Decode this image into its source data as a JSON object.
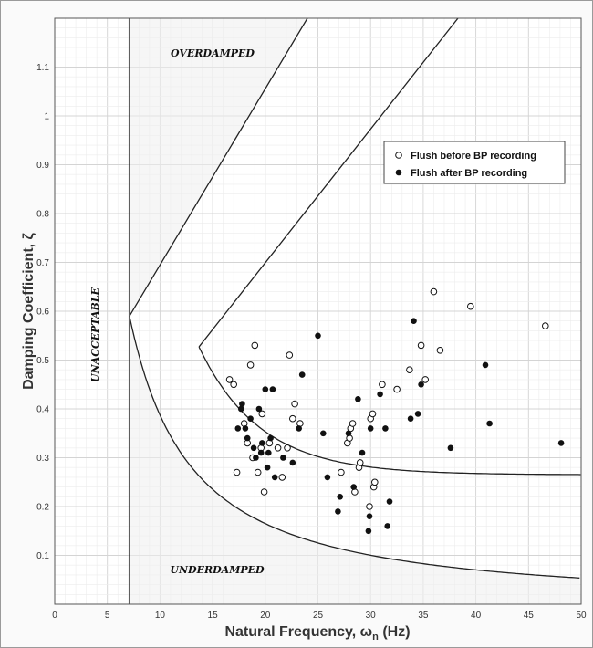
{
  "chart_data": {
    "type": "scatter",
    "xlabel": "Natural Frequency, ω",
    "xlabel_sub": "n",
    "xlabel_unit": " (Hz)",
    "ylabel": "Damping Coefficient, ζ",
    "xlim": [
      0,
      50
    ],
    "ylim": [
      0,
      1.2
    ],
    "xticks": [
      "0",
      "5",
      "10",
      "15",
      "20",
      "25",
      "30",
      "35",
      "40",
      "45",
      "50"
    ],
    "yticks": [
      "0.1",
      "0.2",
      "0.3",
      "0.4",
      "0.5",
      "0.6",
      "0.7",
      "0.8",
      "0.9",
      "1",
      "1.1"
    ],
    "grid": true,
    "legend_position": "right",
    "region_labels": {
      "overdamped": "OVERDAMPED",
      "underdamped": "UNDERDAMPED",
      "unacceptable": "UNACCEPTABLE"
    },
    "boundary_frequency_hz": 7.1,
    "series": [
      {
        "name": "Flush before BP recording",
        "marker": "open-circle",
        "points": [
          [
            16.6,
            0.46
          ],
          [
            17.0,
            0.45
          ],
          [
            17.3,
            0.27
          ],
          [
            18.0,
            0.37
          ],
          [
            18.3,
            0.33
          ],
          [
            18.6,
            0.49
          ],
          [
            18.8,
            0.3
          ],
          [
            19.0,
            0.53
          ],
          [
            19.3,
            0.27
          ],
          [
            19.6,
            0.32
          ],
          [
            19.9,
            0.23
          ],
          [
            19.7,
            0.39
          ],
          [
            20.4,
            0.33
          ],
          [
            21.2,
            0.32
          ],
          [
            21.6,
            0.26
          ],
          [
            22.1,
            0.32
          ],
          [
            22.3,
            0.51
          ],
          [
            22.6,
            0.38
          ],
          [
            22.8,
            0.41
          ],
          [
            23.3,
            0.37
          ],
          [
            27.2,
            0.27
          ],
          [
            27.8,
            0.33
          ],
          [
            28.0,
            0.34
          ],
          [
            28.1,
            0.36
          ],
          [
            28.3,
            0.37
          ],
          [
            28.5,
            0.23
          ],
          [
            28.9,
            0.28
          ],
          [
            29.0,
            0.29
          ],
          [
            29.9,
            0.2
          ],
          [
            30.0,
            0.38
          ],
          [
            30.2,
            0.39
          ],
          [
            30.3,
            0.24
          ],
          [
            30.4,
            0.25
          ],
          [
            31.1,
            0.45
          ],
          [
            32.5,
            0.44
          ],
          [
            33.7,
            0.48
          ],
          [
            34.8,
            0.53
          ],
          [
            35.2,
            0.46
          ],
          [
            36.0,
            0.64
          ],
          [
            36.6,
            0.52
          ],
          [
            39.5,
            0.61
          ],
          [
            46.6,
            0.57
          ]
        ]
      },
      {
        "name": "Flush after BP recording",
        "marker": "filled-circle",
        "points": [
          [
            17.4,
            0.36
          ],
          [
            17.7,
            0.4
          ],
          [
            17.8,
            0.41
          ],
          [
            18.1,
            0.36
          ],
          [
            18.3,
            0.34
          ],
          [
            18.6,
            0.38
          ],
          [
            18.9,
            0.32
          ],
          [
            19.1,
            0.3
          ],
          [
            19.4,
            0.4
          ],
          [
            19.6,
            0.31
          ],
          [
            19.7,
            0.33
          ],
          [
            20.0,
            0.44
          ],
          [
            20.2,
            0.28
          ],
          [
            20.3,
            0.31
          ],
          [
            20.5,
            0.34
          ],
          [
            20.7,
            0.44
          ],
          [
            20.9,
            0.26
          ],
          [
            21.7,
            0.3
          ],
          [
            22.6,
            0.29
          ],
          [
            23.2,
            0.36
          ],
          [
            23.5,
            0.47
          ],
          [
            25.0,
            0.55
          ],
          [
            25.5,
            0.35
          ],
          [
            25.9,
            0.26
          ],
          [
            26.9,
            0.19
          ],
          [
            27.1,
            0.22
          ],
          [
            27.9,
            0.35
          ],
          [
            28.4,
            0.24
          ],
          [
            28.8,
            0.42
          ],
          [
            29.2,
            0.31
          ],
          [
            29.8,
            0.15
          ],
          [
            29.9,
            0.18
          ],
          [
            30.0,
            0.36
          ],
          [
            30.9,
            0.43
          ],
          [
            31.4,
            0.36
          ],
          [
            31.6,
            0.16
          ],
          [
            31.8,
            0.21
          ],
          [
            33.8,
            0.38
          ],
          [
            34.1,
            0.58
          ],
          [
            34.5,
            0.39
          ],
          [
            34.8,
            0.45
          ],
          [
            37.6,
            0.32
          ],
          [
            40.9,
            0.49
          ],
          [
            41.3,
            0.37
          ],
          [
            48.1,
            0.33
          ]
        ]
      }
    ]
  }
}
